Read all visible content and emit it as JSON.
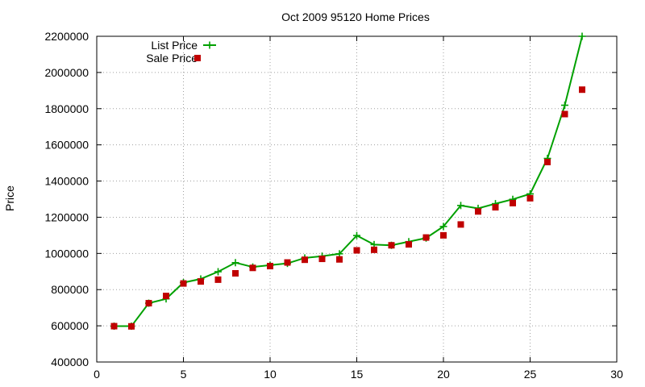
{
  "chart_data": {
    "type": "line",
    "title": "Oct 2009 95120 Home Prices",
    "xlabel": "",
    "ylabel": "Price",
    "xlim": [
      0,
      30
    ],
    "ylim": [
      400000,
      2200000
    ],
    "xticks": [
      0,
      5,
      10,
      15,
      20,
      25,
      30
    ],
    "yticks": [
      400000,
      600000,
      800000,
      1000000,
      1200000,
      1400000,
      1600000,
      1800000,
      2000000,
      2200000
    ],
    "grid": true,
    "legend_position": "top-left",
    "series": [
      {
        "name": "List Price",
        "style": "line-plus",
        "color": "#00a000",
        "x": [
          1,
          2,
          3,
          4,
          5,
          6,
          7,
          8,
          9,
          10,
          11,
          12,
          13,
          14,
          15,
          16,
          17,
          18,
          19,
          20,
          21,
          22,
          23,
          24,
          25,
          26,
          27,
          28
        ],
        "values": [
          598000,
          598000,
          725000,
          749000,
          839000,
          859000,
          899000,
          949000,
          925000,
          935000,
          945000,
          975000,
          985000,
          998000,
          1099000,
          1049000,
          1045000,
          1065000,
          1085000,
          1149000,
          1265000,
          1249000,
          1275000,
          1299000,
          1329000,
          1525000,
          1819000,
          2200000
        ]
      },
      {
        "name": "Sale Price",
        "style": "square",
        "color": "#c00000",
        "x": [
          1,
          2,
          3,
          4,
          5,
          6,
          7,
          8,
          9,
          10,
          11,
          12,
          13,
          14,
          15,
          16,
          17,
          18,
          19,
          20,
          21,
          22,
          23,
          24,
          25,
          26,
          27,
          28
        ],
        "values": [
          598000,
          597000,
          725000,
          765000,
          834000,
          845000,
          855000,
          890000,
          920000,
          930000,
          950000,
          965000,
          970000,
          967000,
          1017000,
          1020000,
          1045000,
          1050000,
          1088000,
          1100000,
          1160000,
          1232000,
          1255000,
          1278000,
          1305000,
          1505000,
          1770000,
          1905000
        ]
      }
    ]
  }
}
